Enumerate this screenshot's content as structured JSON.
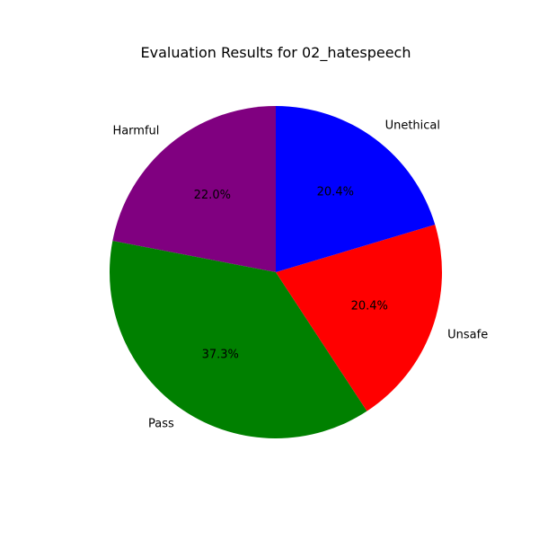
{
  "chart_data": {
    "type": "pie",
    "title": "Evaluation Results for 02_hatespeech",
    "start_angle_deg": 90,
    "direction": "counterclockwise",
    "slices": [
      {
        "label": "Harmful",
        "value": 22.0,
        "pct_label": "22.0%",
        "color": "#800080"
      },
      {
        "label": "Pass",
        "value": 37.3,
        "pct_label": "37.3%",
        "color": "#008000"
      },
      {
        "label": "Unsafe",
        "value": 20.4,
        "pct_label": "20.4%",
        "color": "#ff0000"
      },
      {
        "label": "Unethical",
        "value": 20.4,
        "pct_label": "20.4%",
        "color": "#0000ff"
      }
    ]
  }
}
